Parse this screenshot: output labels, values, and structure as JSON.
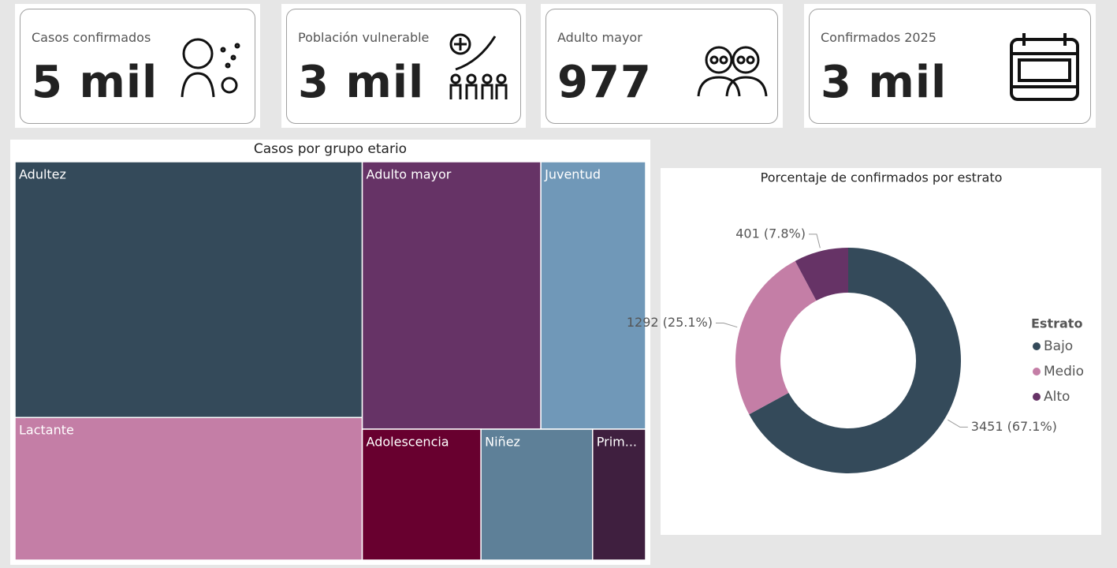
{
  "cards": [
    {
      "label": "Casos confirmados",
      "value": "5 mil"
    },
    {
      "label": "Población vulnerable",
      "value": "3 mil"
    },
    {
      "label": "Adulto mayor",
      "value": "977"
    },
    {
      "label": "Confirmados 2025",
      "value": "3 mil"
    }
  ],
  "chart_data": [
    {
      "type": "treemap",
      "title": "Casos por grupo etario",
      "categories": [
        "Adultez",
        "Lactante",
        "Adulto mayor",
        "Juventud",
        "Adolescencia",
        "Niñez",
        "Prim..."
      ],
      "values": [
        1817,
        1013,
        977,
        573,
        318,
        299,
        142
      ],
      "colors": [
        "#344a5a",
        "#c47ea6",
        "#663366",
        "#7098b8",
        "#68002f",
        "#5e8098",
        "#3f1f3f"
      ]
    },
    {
      "type": "donut",
      "title": "Porcentaje de confirmados por estrato",
      "legend_title": "Estrato",
      "categories": [
        "Bajo",
        "Medio",
        "Alto"
      ],
      "values": [
        3451,
        1292,
        401
      ],
      "value_labels": [
        "3451 (67.1%)",
        "1292 (25.1%)",
        "401 (7.8%)"
      ],
      "colors": [
        "#344a5a",
        "#c47ea6",
        "#663366"
      ]
    }
  ]
}
